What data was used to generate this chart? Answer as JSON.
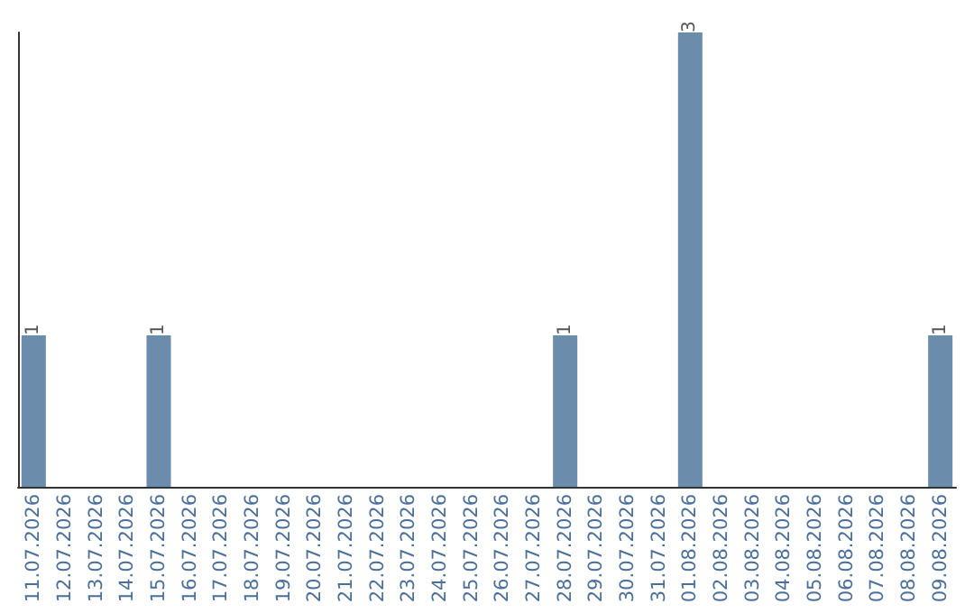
{
  "chart_data": {
    "type": "bar",
    "categories": [
      "11.07.2026",
      "12.07.2026",
      "13.07.2026",
      "14.07.2026",
      "15.07.2026",
      "16.07.2026",
      "17.07.2026",
      "18.07.2026",
      "19.07.2026",
      "20.07.2026",
      "21.07.2026",
      "22.07.2026",
      "23.07.2026",
      "24.07.2026",
      "25.07.2026",
      "26.07.2026",
      "27.07.2026",
      "28.07.2026",
      "29.07.2026",
      "30.07.2026",
      "31.07.2026",
      "01.08.2026",
      "02.08.2026",
      "03.08.2026",
      "04.08.2026",
      "05.08.2026",
      "06.08.2026",
      "07.08.2026",
      "08.08.2026",
      "09.08.2026"
    ],
    "values": [
      1,
      0,
      0,
      0,
      1,
      0,
      0,
      0,
      0,
      0,
      0,
      0,
      0,
      0,
      0,
      0,
      0,
      1,
      0,
      0,
      0,
      3,
      0,
      0,
      0,
      0,
      0,
      0,
      0,
      1
    ],
    "value_labels": [
      "1",
      null,
      null,
      null,
      "1",
      null,
      null,
      null,
      null,
      null,
      null,
      null,
      null,
      null,
      null,
      null,
      null,
      "1",
      null,
      null,
      null,
      "3",
      null,
      null,
      null,
      null,
      null,
      null,
      null,
      "1"
    ],
    "color": "#6b8cab",
    "tick_labels": "x"
  }
}
